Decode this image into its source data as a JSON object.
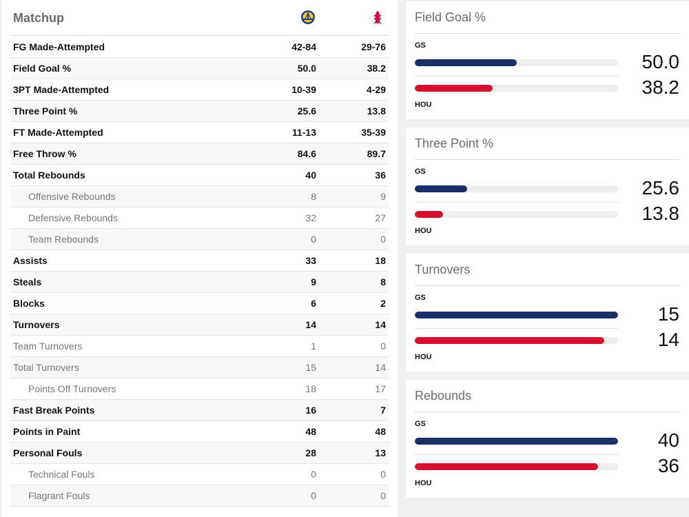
{
  "matchup": {
    "title": "Matchup",
    "teams": [
      "GS",
      "HOU"
    ],
    "rows": [
      {
        "label": "FG Made-Attempted",
        "gs": "42-84",
        "hou": "29-76",
        "style": "b"
      },
      {
        "label": "Field Goal %",
        "gs": "50.0",
        "hou": "38.2",
        "style": "b"
      },
      {
        "label": "3PT Made-Attempted",
        "gs": "10-39",
        "hou": "4-29",
        "style": "b"
      },
      {
        "label": "Three Point %",
        "gs": "25.6",
        "hou": "13.8",
        "style": "b"
      },
      {
        "label": "FT Made-Attempted",
        "gs": "11-13",
        "hou": "35-39",
        "style": "b"
      },
      {
        "label": "Free Throw %",
        "gs": "84.6",
        "hou": "89.7",
        "style": "b"
      },
      {
        "label": "Total Rebounds",
        "gs": "40",
        "hou": "36",
        "style": "b"
      },
      {
        "label": "Offensive Rebounds",
        "gs": "8",
        "hou": "9",
        "style": "n sub"
      },
      {
        "label": "Defensive Rebounds",
        "gs": "32",
        "hou": "27",
        "style": "n sub"
      },
      {
        "label": "Team Rebounds",
        "gs": "0",
        "hou": "0",
        "style": "n sub"
      },
      {
        "label": "Assists",
        "gs": "33",
        "hou": "18",
        "style": "b"
      },
      {
        "label": "Steals",
        "gs": "9",
        "hou": "8",
        "style": "b"
      },
      {
        "label": "Blocks",
        "gs": "6",
        "hou": "2",
        "style": "b"
      },
      {
        "label": "Turnovers",
        "gs": "14",
        "hou": "14",
        "style": "b"
      },
      {
        "label": "Team Turnovers",
        "gs": "1",
        "hou": "0",
        "style": "n"
      },
      {
        "label": "Total Turnovers",
        "gs": "15",
        "hou": "14",
        "style": "n"
      },
      {
        "label": "Points Off Turnovers",
        "gs": "18",
        "hou": "17",
        "style": "n sub"
      },
      {
        "label": "Fast Break Points",
        "gs": "16",
        "hou": "7",
        "style": "b"
      },
      {
        "label": "Points in Paint",
        "gs": "48",
        "hou": "48",
        "style": "b"
      },
      {
        "label": "Personal Fouls",
        "gs": "28",
        "hou": "13",
        "style": "b"
      },
      {
        "label": "Technical Fouls",
        "gs": "0",
        "hou": "0",
        "style": "n sub"
      },
      {
        "label": "Flagrant Fouls",
        "gs": "0",
        "hou": "0",
        "style": "n sub"
      }
    ]
  },
  "cards": [
    {
      "title": "Field Goal %",
      "gs_label": "GS",
      "hou_label": "HOU",
      "gs_value": "50.0",
      "hou_value": "38.2",
      "gs_fill": 0.5,
      "hou_fill": 0.382
    },
    {
      "title": "Three Point %",
      "gs_label": "GS",
      "hou_label": "HOU",
      "gs_value": "25.6",
      "hou_value": "13.8",
      "gs_fill": 0.256,
      "hou_fill": 0.138
    },
    {
      "title": "Turnovers",
      "gs_label": "GS",
      "hou_label": "HOU",
      "gs_value": "15",
      "hou_value": "14",
      "gs_fill": 1.0,
      "hou_fill": 0.933
    },
    {
      "title": "Rebounds",
      "gs_label": "GS",
      "hou_label": "HOU",
      "gs_value": "40",
      "hou_value": "36",
      "gs_fill": 1.0,
      "hou_fill": 0.9
    }
  ],
  "colors": {
    "gs": "#1b2f66",
    "hou": "#d5102e",
    "track": "#eeeeee"
  },
  "icons": {
    "gs": "warriors-logo-icon",
    "hou": "rockets-logo-icon"
  }
}
